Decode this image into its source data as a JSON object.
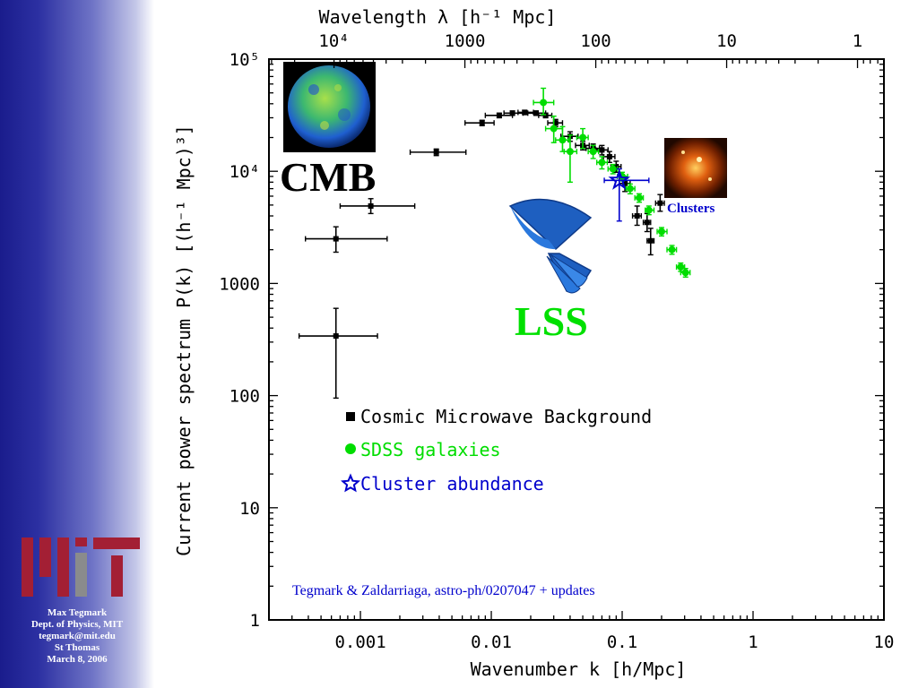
{
  "sidebar": {
    "credit_lines": [
      "Max Tegmark",
      "Dept. of Physics, MIT",
      "tegmark@mit.edu",
      "St Thomas",
      "March 8, 2006"
    ],
    "logo": "mit-logo",
    "gradient": [
      "#1a1c8c",
      "#ffffff"
    ]
  },
  "chart_data": {
    "type": "scatter",
    "xscale": "log",
    "yscale": "log",
    "xlim": [
      0.0002,
      10
    ],
    "ylim": [
      1,
      100000
    ],
    "xlabel": "Wavenumber k [h/Mpc]",
    "ylabel": "Current power spectrum P(k) [(h⁻¹ Mpc)³]",
    "top_xlabel": "Wavelength λ [h⁻¹ Mpc]",
    "xticks": [
      {
        "value": 0.001,
        "label": "0.001"
      },
      {
        "value": 0.01,
        "label": "0.01"
      },
      {
        "value": 0.1,
        "label": "0.1"
      },
      {
        "value": 1,
        "label": "1"
      },
      {
        "value": 10,
        "label": "10"
      }
    ],
    "yticks": [
      {
        "value": 1,
        "label": "1"
      },
      {
        "value": 10,
        "label": "10"
      },
      {
        "value": 100,
        "label": "100"
      },
      {
        "value": 1000,
        "label": "1000"
      },
      {
        "value": 10000,
        "label": "10⁴"
      },
      {
        "value": 100000,
        "label": "10⁵"
      }
    ],
    "top_ticks": [
      {
        "value": 10000,
        "label": "10⁴"
      },
      {
        "value": 1000,
        "label": "1000"
      },
      {
        "value": 100,
        "label": "100"
      },
      {
        "value": 10,
        "label": "10"
      },
      {
        "value": 1,
        "label": "1"
      }
    ],
    "series": [
      {
        "name": "Cosmic Microwave Background",
        "color": "#000000",
        "marker": "square",
        "points": [
          {
            "x": 0.00065,
            "y": 340,
            "x_lo": 0.00034,
            "x_hi": 0.00135,
            "y_lo": 95,
            "y_hi": 600
          },
          {
            "x": 0.00065,
            "y": 2500,
            "x_lo": 0.00038,
            "x_hi": 0.0016,
            "y_lo": 1900,
            "y_hi": 3200
          },
          {
            "x": 0.0012,
            "y": 4900,
            "x_lo": 0.0007,
            "x_hi": 0.0026,
            "y_lo": 4200,
            "y_hi": 5700
          },
          {
            "x": 0.0038,
            "y": 14800,
            "x_lo": 0.0024,
            "x_hi": 0.0064,
            "y_lo": 13800,
            "y_hi": 15800
          },
          {
            "x": 0.0085,
            "y": 27000,
            "x_lo": 0.0063,
            "x_hi": 0.0105,
            "y_lo": 25500,
            "y_hi": 28500
          },
          {
            "x": 0.0115,
            "y": 31500,
            "x_lo": 0.009,
            "x_hi": 0.0145,
            "y_lo": 30000,
            "y_hi": 33000
          },
          {
            "x": 0.0145,
            "y": 33000,
            "x_lo": 0.0125,
            "x_hi": 0.0175,
            "y_lo": 31500,
            "y_hi": 34500
          },
          {
            "x": 0.018,
            "y": 33500,
            "x_lo": 0.016,
            "x_hi": 0.021,
            "y_lo": 32000,
            "y_hi": 35000
          },
          {
            "x": 0.022,
            "y": 33000,
            "x_lo": 0.019,
            "x_hi": 0.026,
            "y_lo": 31500,
            "y_hi": 34500
          },
          {
            "x": 0.026,
            "y": 31500,
            "x_lo": 0.023,
            "x_hi": 0.029,
            "y_lo": 30000,
            "y_hi": 33000
          },
          {
            "x": 0.031,
            "y": 27000,
            "x_lo": 0.027,
            "x_hi": 0.035,
            "y_lo": 25000,
            "y_hi": 29000
          },
          {
            "x": 0.04,
            "y": 20500,
            "x_lo": 0.034,
            "x_hi": 0.046,
            "y_lo": 18500,
            "y_hi": 22500
          },
          {
            "x": 0.05,
            "y": 17000,
            "x_lo": 0.044,
            "x_hi": 0.056,
            "y_lo": 15500,
            "y_hi": 18500
          },
          {
            "x": 0.06,
            "y": 16000,
            "x_lo": 0.053,
            "x_hi": 0.067,
            "y_lo": 14500,
            "y_hi": 17500
          },
          {
            "x": 0.07,
            "y": 15500,
            "x_lo": 0.063,
            "x_hi": 0.078,
            "y_lo": 14000,
            "y_hi": 17000
          },
          {
            "x": 0.08,
            "y": 13500,
            "x_lo": 0.072,
            "x_hi": 0.088,
            "y_lo": 12000,
            "y_hi": 15000
          },
          {
            "x": 0.09,
            "y": 11000,
            "x_lo": 0.082,
            "x_hi": 0.098,
            "y_lo": 9800,
            "y_hi": 12300
          },
          {
            "x": 0.105,
            "y": 7800,
            "x_lo": 0.095,
            "x_hi": 0.115,
            "y_lo": 6600,
            "y_hi": 9000
          },
          {
            "x": 0.13,
            "y": 4000,
            "x_lo": 0.12,
            "x_hi": 0.14,
            "y_lo": 3300,
            "y_hi": 4900
          },
          {
            "x": 0.155,
            "y": 3500,
            "x_lo": 0.145,
            "x_hi": 0.165,
            "y_lo": 2900,
            "y_hi": 4200
          },
          {
            "x": 0.165,
            "y": 2400,
            "x_lo": 0.155,
            "x_hi": 0.175,
            "y_lo": 1800,
            "y_hi": 3100
          },
          {
            "x": 0.195,
            "y": 5200,
            "x_lo": 0.18,
            "x_hi": 0.21,
            "y_lo": 4400,
            "y_hi": 6200
          }
        ]
      },
      {
        "name": "SDSS galaxies",
        "color": "#00dd00",
        "marker": "circle",
        "points": [
          {
            "x": 0.025,
            "y": 41000,
            "x_lo": 0.021,
            "x_hi": 0.03,
            "y_lo": 32000,
            "y_hi": 55000
          },
          {
            "x": 0.03,
            "y": 24000,
            "x_lo": 0.026,
            "x_hi": 0.035,
            "y_lo": 18000,
            "y_hi": 31000
          },
          {
            "x": 0.035,
            "y": 19000,
            "x_lo": 0.031,
            "x_hi": 0.039,
            "y_lo": 15000,
            "y_hi": 25000
          },
          {
            "x": 0.04,
            "y": 15000,
            "x_lo": 0.036,
            "x_hi": 0.045,
            "y_lo": 8000,
            "y_hi": 21000
          },
          {
            "x": 0.05,
            "y": 20000,
            "x_lo": 0.045,
            "x_hi": 0.055,
            "y_lo": 16000,
            "y_hi": 24000
          },
          {
            "x": 0.06,
            "y": 15000,
            "x_lo": 0.055,
            "x_hi": 0.066,
            "y_lo": 13000,
            "y_hi": 17000
          },
          {
            "x": 0.07,
            "y": 12000,
            "x_lo": 0.064,
            "x_hi": 0.077,
            "y_lo": 10500,
            "y_hi": 13500
          },
          {
            "x": 0.085,
            "y": 10500,
            "x_lo": 0.078,
            "x_hi": 0.092,
            "y_lo": 9500,
            "y_hi": 11500
          },
          {
            "x": 0.1,
            "y": 9000,
            "x_lo": 0.092,
            "x_hi": 0.11,
            "y_lo": 8200,
            "y_hi": 9800
          },
          {
            "x": 0.115,
            "y": 7000,
            "x_lo": 0.107,
            "x_hi": 0.125,
            "y_lo": 6300,
            "y_hi": 7700
          },
          {
            "x": 0.135,
            "y": 5800,
            "x_lo": 0.125,
            "x_hi": 0.145,
            "y_lo": 5300,
            "y_hi": 6300
          },
          {
            "x": 0.16,
            "y": 4500,
            "x_lo": 0.15,
            "x_hi": 0.175,
            "y_lo": 4100,
            "y_hi": 4900
          },
          {
            "x": 0.2,
            "y": 2900,
            "x_lo": 0.185,
            "x_hi": 0.22,
            "y_lo": 2650,
            "y_hi": 3150
          },
          {
            "x": 0.24,
            "y": 2000,
            "x_lo": 0.22,
            "x_hi": 0.26,
            "y_lo": 1820,
            "y_hi": 2180
          },
          {
            "x": 0.28,
            "y": 1400,
            "x_lo": 0.26,
            "x_hi": 0.3,
            "y_lo": 1280,
            "y_hi": 1520
          },
          {
            "x": 0.305,
            "y": 1250,
            "x_lo": 0.28,
            "x_hi": 0.33,
            "y_lo": 1140,
            "y_hi": 1360
          }
        ]
      },
      {
        "name": "Cluster abundance",
        "color": "#0000cc",
        "marker": "star",
        "points": [
          {
            "x": 0.095,
            "y": 8300,
            "x_lo": 0.073,
            "x_hi": 0.16,
            "y_lo": 3600,
            "y_hi": 10500
          }
        ]
      }
    ],
    "legend": {
      "placement": "lower-center"
    },
    "annotations": {
      "cmb_label": "CMB",
      "lss_label": "LSS",
      "clusters_label": "Clusters",
      "citation": "Tegmark & Zaldarriaga, astro-ph/0207047 + updates"
    },
    "colors": {
      "cmb_label": "#000000",
      "lss_label": "#00e000",
      "clusters_label": "#0000cc",
      "citation": "#0000cc"
    }
  }
}
